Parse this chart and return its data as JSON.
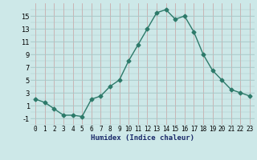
{
  "x": [
    0,
    1,
    2,
    3,
    4,
    5,
    6,
    7,
    8,
    9,
    10,
    11,
    12,
    13,
    14,
    15,
    16,
    17,
    18,
    19,
    20,
    21,
    22,
    23
  ],
  "y": [
    2,
    1.5,
    0.5,
    -0.5,
    -0.5,
    -0.7,
    2,
    2.5,
    4,
    5,
    8,
    10.5,
    13,
    15.5,
    16,
    14.5,
    15,
    12.5,
    9,
    6.5,
    5,
    3.5,
    3,
    2.5
  ],
  "xlabel": "Humidex (Indice chaleur)",
  "xlim": [
    -0.5,
    23.5
  ],
  "ylim": [
    -2,
    17
  ],
  "yticks": [
    -1,
    1,
    3,
    5,
    7,
    9,
    11,
    13,
    15
  ],
  "xticks": [
    0,
    1,
    2,
    3,
    4,
    5,
    6,
    7,
    8,
    9,
    10,
    11,
    12,
    13,
    14,
    15,
    16,
    17,
    18,
    19,
    20,
    21,
    22,
    23
  ],
  "line_color": "#2d7a6a",
  "marker": "D",
  "marker_size": 2.5,
  "line_width": 1.0,
  "bg_color": "#cde8e8",
  "grid_color_vertical": "#c8a0a0",
  "grid_color_horizontal": "#a8c8c8",
  "xlabel_color": "#1a2a6a",
  "xlabel_fontsize": 6.5,
  "tick_fontsize": 5.5
}
